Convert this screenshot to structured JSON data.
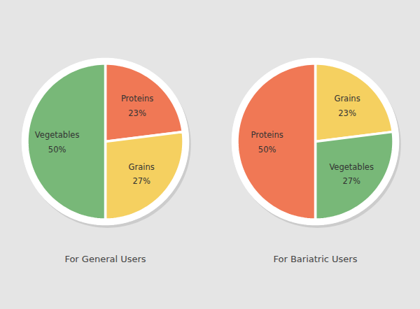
{
  "chart_data": [
    {
      "type": "pie",
      "title": "For General Users",
      "categories": [
        "Proteins",
        "Grains",
        "Vegetables"
      ],
      "values": [
        23,
        27,
        50
      ],
      "value_labels": [
        "23%",
        "27%",
        "50%"
      ],
      "colors": [
        "#F07855",
        "#F5D060",
        "#78B878"
      ],
      "data_labels": true
    },
    {
      "type": "pie",
      "title": "For Bariatric Users",
      "categories": [
        "Grains",
        "Vegetables",
        "Proteins"
      ],
      "values": [
        23,
        27,
        50
      ],
      "value_labels": [
        "23%",
        "27%",
        "50%"
      ],
      "colors": [
        "#F5D060",
        "#78B878",
        "#F07855"
      ],
      "data_labels": true
    }
  ]
}
